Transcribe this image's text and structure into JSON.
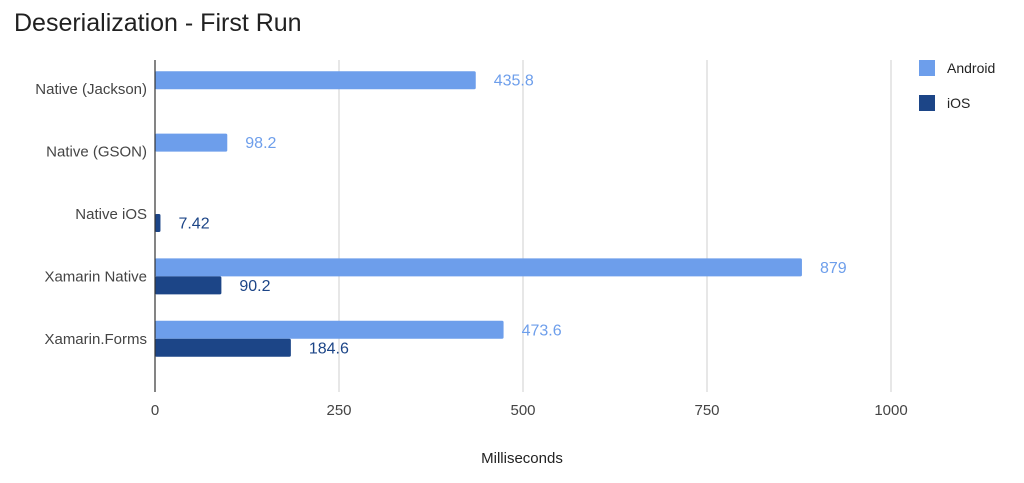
{
  "chart_data": {
    "type": "bar",
    "orientation": "horizontal",
    "title": "Deserialization - First Run",
    "xlabel": "Milliseconds",
    "ylabel": "",
    "categories": [
      "Native (Jackson)",
      "Native (GSON)",
      "Native iOS",
      "Xamarin Native",
      "Xamarin.Forms"
    ],
    "series": [
      {
        "name": "Android",
        "color": "#6d9eeb",
        "values": [
          435.8,
          98.2,
          null,
          879,
          473.6
        ],
        "labels": [
          "435.8",
          "98.2",
          "",
          "879",
          "473.6"
        ]
      },
      {
        "name": "iOS",
        "color": "#1c4587",
        "values": [
          null,
          null,
          7.42,
          90.2,
          184.6
        ],
        "labels": [
          "",
          "",
          "7.42",
          "90.2",
          "184.6"
        ]
      }
    ],
    "xlim": [
      0,
      1000
    ],
    "xticks": [
      "0",
      "250",
      "500",
      "750",
      "1000"
    ],
    "grid": true,
    "legend": "right"
  }
}
